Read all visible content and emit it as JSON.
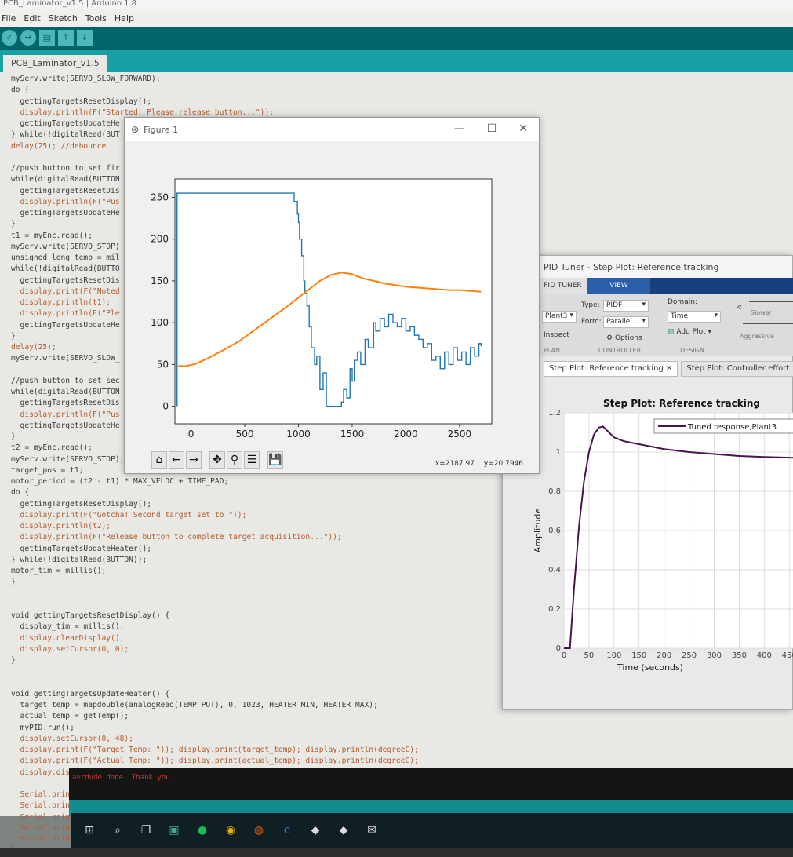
{
  "arduino": {
    "title": "PCB_Laminator_v1.5 | Arduino 1.8",
    "menu": [
      "File",
      "Edit",
      "Sketch",
      "Tools",
      "Help"
    ],
    "toolbar": [
      {
        "name": "verify",
        "glyph": "✓"
      },
      {
        "name": "upload",
        "glyph": "→"
      },
      {
        "name": "new",
        "glyph": "▤"
      },
      {
        "name": "open",
        "glyph": "↑"
      },
      {
        "name": "save",
        "glyph": "↓"
      }
    ],
    "tab": "PCB_Laminator_v1.5",
    "code": [
      "myServ.write(SERVO_SLOW_FORWARD);",
      "do {",
      "  gettingTargetsResetDisplay();",
      "  display.println(F(\"Started! Please release button...\"));",
      "  gettingTargetsUpdateHe",
      "} while(!digitalRead(BUT",
      "delay(25); //debounce",
      "",
      "//push button to set fir",
      "while(digitalRead(BUTTON",
      "  gettingTargetsResetDis",
      "  display.println(F(\"Pus",
      "  gettingTargetsUpdateHe",
      "}",
      "t1 = myEnc.read();",
      "myServ.write(SERVO_STOP)",
      "unsigned long temp = mil",
      "while(!digitalRead(BUTTO",
      "  gettingTargetsResetDis",
      "  display.print(F(\"Noted",
      "  display.println(t1);",
      "  display.println(F(\"Ple",
      "  gettingTargetsUpdateHe",
      "}",
      "delay(25);",
      "myServ.write(SERVO_SLOW_",
      "",
      "//push button to set sec",
      "while(digitalRead(BUTTON",
      "  gettingTargetsResetDis",
      "  display.println(F(\"Pus",
      "  gettingTargetsUpdateHe",
      "}",
      "t2 = myEnc.read();",
      "myServ.write(SERVO_STOP);",
      "target_pos = t1;",
      "motor_period = (t2 - t1) * MAX_VELOC + TIME_PAD;",
      "do {",
      "  gettingTargetsResetDisplay();",
      "  display.print(F(\"Gotcha! Second target set to \"));",
      "  display.println(t2);",
      "  display.println(F(\"Release button to complete target acquisition...\"));",
      "  gettingTargetsUpdateHeater();",
      "} while(!digitalRead(BUTTON));",
      "motor_tim = millis();",
      "}",
      "",
      "",
      "void gettingTargetsResetDisplay() {",
      "  display_tim = millis();",
      "  display.clearDisplay();",
      "  display.setCursor(0, 0);",
      "}",
      "",
      "",
      "void gettingTargetsUpdateHeater() {",
      "  target_temp = mapdouble(analogRead(TEMP_POT), 0, 1023, HEATER_MIN, HEATER_MAX);",
      "  actual_temp = getTemp();",
      "  myPID.run();",
      "  display.setCursor(0, 48);",
      "  display.print(F(\"Target Temp: \")); display.print(target_temp); display.println(degreeC);",
      "  display.print(F(\"Actual Temp: \")); display.print(actual_temp); display.println(degreeC);",
      "  display.display();",
      "",
      "  Serial.print(heater_duty);",
      "  Serial.print(\" \");",
      "  Serial.print(actual_temp);",
      "  Serial.print(\" \");",
      "  Serial.println(target_temp);",
      "}"
    ],
    "console": "avrdude done.  Thank you."
  },
  "taskbar": [
    "windows-start",
    "search",
    "task-view",
    "file-explorer",
    "spotify",
    "chrome",
    "firefox",
    "edge",
    "app",
    "app",
    "mail"
  ],
  "figure": {
    "title": "Figure 1",
    "tools": [
      {
        "name": "home",
        "glyph": "⌂"
      },
      {
        "name": "back",
        "glyph": "←"
      },
      {
        "name": "forward",
        "glyph": "→"
      },
      {
        "name": "pan",
        "glyph": "✥"
      },
      {
        "name": "zoom",
        "glyph": "⚲"
      },
      {
        "name": "configure",
        "glyph": "☰"
      },
      {
        "name": "save",
        "glyph": "💾"
      }
    ],
    "coords": {
      "x": "x=2187.97",
      "y": "y=20.7946"
    }
  },
  "pid_tuner": {
    "title": "PID Tuner - Step Plot: Reference tracking",
    "tabs": [
      "PID TUNER",
      "VIEW"
    ],
    "plant": "Plant3",
    "inspect": "Inspect",
    "type_label": "Type:",
    "type_value": "PIDF",
    "form_label": "Form:",
    "form_value": "Parallel",
    "options": "Options",
    "domain_label": "Domain:",
    "domain_value": "Time",
    "add_plot": "Add Plot",
    "slower": "Slower",
    "aggressive": "Aggressive",
    "groups": [
      "PLANT",
      "CONTROLLER",
      "DESIGN"
    ],
    "doc_tabs": [
      "Step Plot: Reference tracking",
      "Step Plot: Controller effort"
    ]
  },
  "chart_data": [
    {
      "type": "line",
      "xlim": [
        -150,
        2800
      ],
      "ylim": [
        -21,
        272
      ],
      "xticks": [
        0,
        500,
        1000,
        1500,
        2000,
        2500
      ],
      "yticks": [
        0,
        50,
        100,
        150,
        200,
        250
      ],
      "grid": false,
      "series": [
        {
          "color": "#1f77b4",
          "x": [
            -130,
            -130,
            940,
            960,
            990,
            1000,
            1010,
            1030,
            1050,
            1060,
            1080,
            1100,
            1120,
            1150,
            1170,
            1200,
            1230,
            1260,
            1300,
            1350,
            1400,
            1420,
            1450,
            1480,
            1500,
            1520,
            1550,
            1580,
            1620,
            1650,
            1700,
            1720,
            1760,
            1800,
            1840,
            1880,
            1920,
            1960,
            2000,
            2040,
            2080,
            2120,
            2160,
            2200,
            2240,
            2280,
            2320,
            2360,
            2400,
            2440,
            2480,
            2520,
            2560,
            2600,
            2640,
            2680,
            2700
          ],
          "y": [
            0,
            255,
            255,
            245,
            230,
            220,
            200,
            180,
            150,
            135,
            120,
            95,
            70,
            50,
            60,
            20,
            40,
            0,
            0,
            0,
            5,
            20,
            10,
            45,
            30,
            55,
            65,
            50,
            80,
            70,
            100,
            90,
            105,
            95,
            110,
            100,
            95,
            105,
            90,
            95,
            85,
            80,
            70,
            75,
            55,
            60,
            45,
            65,
            50,
            70,
            55,
            65,
            50,
            70,
            60,
            75,
            72
          ]
        },
        {
          "color": "#ff7f0e",
          "x": [
            -130,
            -50,
            50,
            150,
            300,
            450,
            600,
            750,
            900,
            1050,
            1200,
            1300,
            1400,
            1500,
            1600,
            1700,
            1800,
            1900,
            2000,
            2100,
            2200,
            2300,
            2400,
            2500,
            2600,
            2700
          ],
          "y": [
            48,
            48,
            51,
            57,
            67,
            78,
            92,
            106,
            120,
            135,
            150,
            157,
            160,
            158,
            153,
            150,
            147,
            145,
            143,
            142,
            141,
            140,
            139,
            139,
            138,
            137
          ]
        }
      ]
    },
    {
      "type": "line",
      "title": "Step Plot: Reference tracking",
      "xlabel": "Time (seconds)",
      "ylabel": "Amplitude",
      "xlim": [
        0,
        470
      ],
      "ylim": [
        0,
        1.2
      ],
      "xticks": [
        0,
        50,
        100,
        150,
        200,
        250,
        300,
        350,
        400,
        450
      ],
      "yticks": [
        0,
        0.2,
        0.4,
        0.6,
        0.8,
        1,
        1.2
      ],
      "grid": true,
      "legend": "top-right",
      "series": [
        {
          "name": "Tuned response,Plant3",
          "color": "#4a1450",
          "x": [
            0,
            12,
            20,
            30,
            40,
            50,
            60,
            70,
            78,
            90,
            100,
            120,
            150,
            200,
            250,
            300,
            350,
            400,
            470
          ],
          "y": [
            0,
            0,
            0.3,
            0.62,
            0.85,
            1.0,
            1.09,
            1.125,
            1.13,
            1.1,
            1.075,
            1.055,
            1.04,
            1.015,
            1.0,
            0.99,
            0.98,
            0.975,
            0.97
          ]
        }
      ]
    }
  ]
}
